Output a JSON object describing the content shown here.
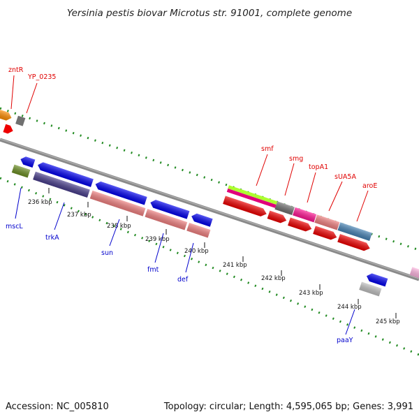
{
  "title": "Yersinia pestis biovar Microtus str. 91001, complete genome",
  "footer": {
    "accession": "Accession: NC_005810",
    "summary": "Topology: circular; Length: 4,595,065 bp; Genes: 3,991"
  },
  "scale": {
    "ticks": [
      "236 kbp",
      "237 kbp",
      "238 kbp",
      "239 kbp",
      "240 kbp",
      "241 kbp",
      "242 kbp",
      "243 kbp",
      "244 kbp",
      "245 kbp"
    ]
  },
  "genes_top": [
    "zntR",
    "YP_0235",
    "smf",
    "smg",
    "topA1",
    "sUA5A",
    "aroE"
  ],
  "genes_bottom": [
    "mscL",
    "trkA",
    "sun",
    "fmt",
    "def",
    "paaY"
  ],
  "colors": {
    "backbone": "#808080",
    "dots": "#228b22",
    "red_label": "#e00000",
    "blue_label": "#0000cc"
  }
}
